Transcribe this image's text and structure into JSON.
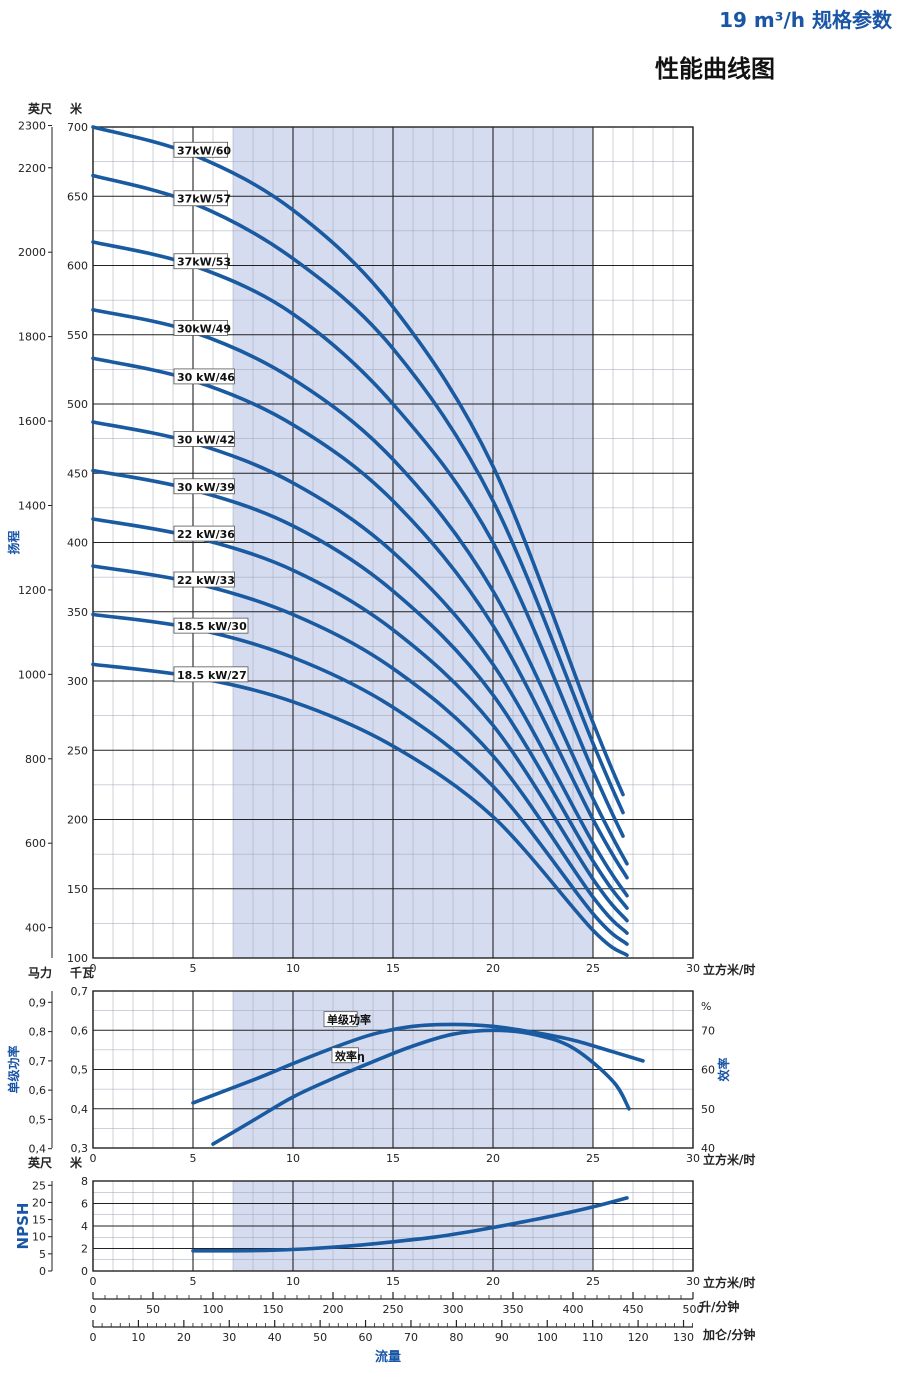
{
  "header": {
    "spec_title": "19 m³/h 规格参数",
    "chart_title": "性能曲线图"
  },
  "colors": {
    "curve": "#1a5aa0",
    "band": "#d6dcf0",
    "grid": "#222222",
    "title_blue": "#1a56a6"
  },
  "chart_data": [
    {
      "type": "line",
      "name": "head",
      "ylabel": "扬程",
      "left_unit": "英尺",
      "right_unit": "米",
      "xlabel": "立方米/时",
      "xlim": [
        0,
        30
      ],
      "ylim": [
        100,
        700
      ],
      "x_ticks": [
        "0",
        "5",
        "10",
        "15",
        "20",
        "25",
        "30"
      ],
      "y_ticks": [
        "100",
        "150",
        "200",
        "250",
        "300",
        "350",
        "400",
        "450",
        "500",
        "550",
        "600",
        "650",
        "700"
      ],
      "ft_ticks": [
        {
          "ft": 400,
          "label": "400"
        },
        {
          "ft": 600,
          "label": "600"
        },
        {
          "ft": 800,
          "label": "800"
        },
        {
          "ft": 1000,
          "label": "1000"
        },
        {
          "ft": 1200,
          "label": "1200"
        },
        {
          "ft": 1400,
          "label": "1400"
        },
        {
          "ft": 1600,
          "label": "1600"
        },
        {
          "ft": 1800,
          "label": "1800"
        },
        {
          "ft": 2000,
          "label": "2000"
        },
        {
          "ft": 2200,
          "label": "2200"
        },
        {
          "ft": 2300,
          "label": "2300"
        }
      ],
      "shade_x": [
        7,
        25
      ],
      "series": [
        {
          "name": "37kW/60",
          "label_x": 4.2,
          "x": [
            0,
            5,
            10,
            15,
            20,
            25,
            26.5
          ],
          "y": [
            700,
            680,
            640,
            570,
            455,
            270,
            218
          ]
        },
        {
          "name": "37kW/57",
          "label_x": 4.2,
          "x": [
            0,
            5,
            10,
            15,
            20,
            25,
            26.5
          ],
          "y": [
            665,
            645,
            605,
            540,
            430,
            255,
            205
          ]
        },
        {
          "name": "37kW/53",
          "label_x": 4.2,
          "x": [
            0,
            5,
            10,
            15,
            20,
            25,
            26.5
          ],
          "y": [
            617,
            600,
            565,
            500,
            400,
            235,
            188
          ]
        },
        {
          "name": "30kW/49",
          "label_x": 4.2,
          "x": [
            0,
            5,
            10,
            15,
            20,
            25,
            26.7
          ],
          "y": [
            568,
            552,
            518,
            460,
            365,
            215,
            168
          ]
        },
        {
          "name": "30 kW/46",
          "label_x": 4.2,
          "x": [
            0,
            5,
            10,
            15,
            20,
            25,
            26.7
          ],
          "y": [
            533,
            517,
            485,
            430,
            340,
            200,
            158
          ]
        },
        {
          "name": "30 kW/42",
          "label_x": 4.2,
          "x": [
            0,
            5,
            10,
            15,
            20,
            25,
            26.7
          ],
          "y": [
            487,
            472,
            443,
            393,
            312,
            183,
            145
          ]
        },
        {
          "name": "30 kW/39",
          "label_x": 4.2,
          "x": [
            0,
            5,
            10,
            15,
            20,
            25,
            26.7
          ],
          "y": [
            452,
            438,
            412,
            365,
            290,
            170,
            136
          ]
        },
        {
          "name": "22 kW/36",
          "label_x": 4.2,
          "x": [
            0,
            5,
            10,
            15,
            20,
            25,
            26.7
          ],
          "y": [
            417,
            404,
            380,
            337,
            268,
            157,
            127
          ]
        },
        {
          "name": "22 kW/33",
          "label_x": 4.2,
          "x": [
            0,
            5,
            10,
            15,
            20,
            25,
            26.7
          ],
          "y": [
            383,
            371,
            348,
            309,
            246,
            144,
            118
          ]
        },
        {
          "name": "18.5 kW/30",
          "label_x": 4.2,
          "x": [
            0,
            5,
            10,
            15,
            20,
            25,
            26.7
          ],
          "y": [
            348,
            338,
            317,
            281,
            224,
            132,
            110
          ]
        },
        {
          "name": "18.5 kW/27",
          "label_x": 4.2,
          "x": [
            0,
            5,
            10,
            15,
            20,
            25,
            26.7
          ],
          "y": [
            312,
            303,
            285,
            253,
            202,
            120,
            102
          ]
        }
      ]
    },
    {
      "type": "line",
      "name": "power_efficiency",
      "ylabel": "单级功率",
      "y2label": "效率",
      "left_unit": "马力",
      "right_unit": "千瓦",
      "y2_unit": "%",
      "xlabel": "立方米/时",
      "xlim": [
        0,
        30
      ],
      "ylim": [
        0.3,
        0.7
      ],
      "y2lim": [
        40,
        80
      ],
      "x_ticks": [
        "0",
        "5",
        "10",
        "15",
        "20",
        "25",
        "30"
      ],
      "y_ticks": [
        "0,3",
        "0,4",
        "0,5",
        "0,6",
        "0,7"
      ],
      "hp_ticks": [
        {
          "hp": 0.4,
          "label": "0,4"
        },
        {
          "hp": 0.5,
          "label": "0,5"
        },
        {
          "hp": 0.6,
          "label": "0,6"
        },
        {
          "hp": 0.7,
          "label": "0,7"
        },
        {
          "hp": 0.8,
          "label": "0,8"
        },
        {
          "hp": 0.9,
          "label": "0,9"
        }
      ],
      "y2_ticks": [
        "40",
        "50",
        "60",
        "70"
      ],
      "shade_x": [
        7,
        25
      ],
      "series": [
        {
          "name": "单级功率",
          "axis": "left",
          "label_x": 11.7,
          "label_y": 0.627,
          "x": [
            5,
            8,
            10,
            12,
            14,
            16,
            18,
            20,
            22,
            24,
            26,
            27.5
          ],
          "y": [
            0.415,
            0.473,
            0.515,
            0.555,
            0.59,
            0.61,
            0.615,
            0.61,
            0.595,
            0.575,
            0.545,
            0.522
          ]
        },
        {
          "name": "效率η",
          "axis": "right",
          "label_x": 12.1,
          "label_y": 63.5,
          "x": [
            6,
            8,
            10,
            12,
            14,
            16,
            18,
            20,
            22,
            24,
            26,
            26.8
          ],
          "y": [
            41,
            47,
            53,
            57.7,
            62,
            66,
            69,
            70,
            69,
            65.5,
            57,
            50
          ]
        }
      ]
    },
    {
      "type": "line",
      "name": "npsh",
      "ylabel": "NPSH",
      "left_unit": "英尺",
      "right_unit": "米",
      "xlabel": "立方米/时",
      "xlim": [
        0,
        30
      ],
      "ylim": [
        0,
        8
      ],
      "x_ticks": [
        "0",
        "5",
        "10",
        "15",
        "20",
        "25",
        "30"
      ],
      "y_ticks": [
        "0",
        "2",
        "4",
        "6",
        "8"
      ],
      "ft_ticks": [
        {
          "ft": 0,
          "label": "0"
        },
        {
          "ft": 5,
          "label": "5"
        },
        {
          "ft": 10,
          "label": "10"
        },
        {
          "ft": 15,
          "label": "15"
        },
        {
          "ft": 20,
          "label": "20"
        },
        {
          "ft": 25,
          "label": "25"
        }
      ],
      "shade_x": [
        7,
        25
      ],
      "series": [
        {
          "name": "NPSH",
          "x": [
            5,
            7,
            9,
            11,
            13,
            15,
            17,
            19,
            21,
            23,
            25,
            26.7
          ],
          "y": [
            1.8,
            1.8,
            1.85,
            2.0,
            2.25,
            2.6,
            3.0,
            3.55,
            4.2,
            4.9,
            5.7,
            6.5
          ]
        }
      ]
    }
  ],
  "flow_scales": [
    {
      "unit": "升/分钟",
      "max": 500,
      "major": 50,
      "minor": 10,
      "labels": [
        "0",
        "50",
        "100",
        "150",
        "200",
        "250",
        "300",
        "350",
        "400",
        "450",
        "500"
      ]
    },
    {
      "unit": "加仑/分钟",
      "max": 132.086,
      "major": 10,
      "minor": 2,
      "labels": [
        "0",
        "10",
        "20",
        "30",
        "40",
        "50",
        "60",
        "70",
        "80",
        "90",
        "100",
        "110",
        "120",
        "130"
      ]
    }
  ],
  "flow_label": "流量"
}
